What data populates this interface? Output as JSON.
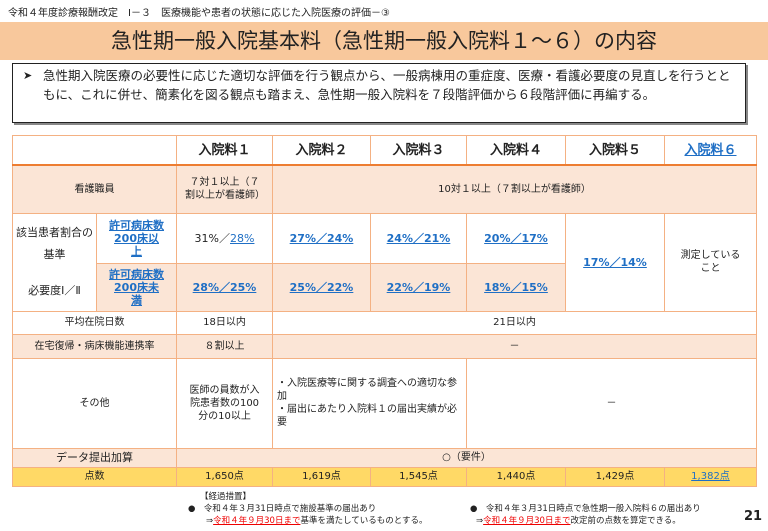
{
  "breadcrumb": "令和４年度診療報酬改定　Ⅰ－３　医療機能や患者の状態に応じた入院医療の評価－③",
  "title": "急性期一般入院基本料（急性期一般入院料１～６）の内容",
  "summary": "急性期入院医療の必要性に応じた適切な評価を行う観点から、一般病棟用の重症度、医療・看護必要度の見直しを行うとともに、これに併せ、簡素化を図る観点も踏まえ、急性期一般入院料を７段階評価から６段階評価に再編する。",
  "table": {
    "headers": [
      "入院料１",
      "入院料２",
      "入院料３",
      "入院料４",
      "入院料５",
      "入院料６"
    ],
    "nurse": {
      "label": "看護職員",
      "c1": "７対１以上（７割以上が看護師）",
      "rest": "10対１以上（７割以上が看護師）"
    },
    "criteria": {
      "label1": "該当患者割合の基準",
      "label2": "必要度Ⅰ／Ⅱ",
      "sub1": "許可病床数200床以上",
      "sub2": "許可病床数200床未満",
      "row1": [
        [
          "31%",
          "28%"
        ],
        [
          "27%",
          "24%"
        ],
        [
          "24%",
          "21%"
        ],
        [
          "20%",
          "17%"
        ]
      ],
      "row2": [
        [
          "28%",
          "25%"
        ],
        [
          "25%",
          "22%"
        ],
        [
          "22%",
          "19%"
        ],
        [
          "18%",
          "15%"
        ]
      ],
      "c5": [
        "17%",
        "14%"
      ],
      "c6": "測定していること"
    },
    "stay": {
      "label": "平均在院日数",
      "c1": "18日以内",
      "rest": "21日以内"
    },
    "home": {
      "label": "在宅復帰・病床機能連携率",
      "c1": "８割以上",
      "rest": "－"
    },
    "other": {
      "label": "その他",
      "c1": "医師の員数が入院患者数の100分の10以上",
      "c23a": "・入院医療等に関する調査への適切な参加",
      "c23b": "・届出にあたり入院料１の届出実績が必要",
      "rest": "－"
    },
    "data": {
      "label": "データ提出加算",
      "value": "○（要件）"
    },
    "points": {
      "label": "点数",
      "values": [
        "1,650点",
        "1,619点",
        "1,545点",
        "1,440点",
        "1,429点",
        "1,382点"
      ]
    }
  },
  "notes": {
    "head": "【経過措置】",
    "a1": "●　令和４年３月31日時点で施設基準の届出あり",
    "a2pre": "⇒",
    "a2red": "令和４年９月30日まで",
    "a2post": "基準を満たしているものとする。",
    "b1": "●　令和４年３月31日時点で急性期一般入院料６の届出あり",
    "b2pre": "⇒",
    "b2red": "令和４年９月30日まで",
    "b2post": "改定前の点数を算定できる。"
  },
  "page_number": "21"
}
